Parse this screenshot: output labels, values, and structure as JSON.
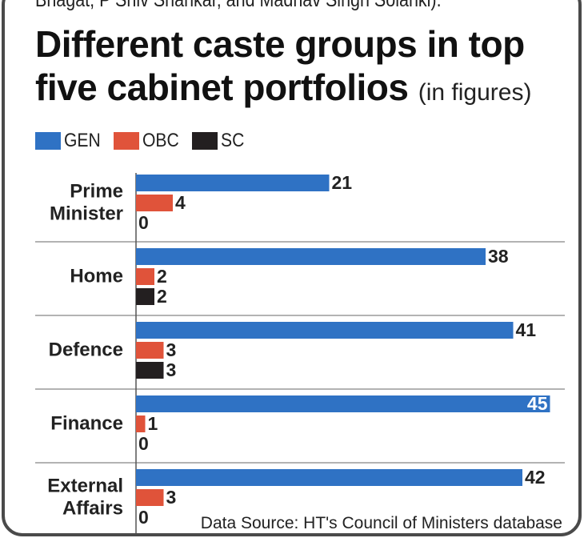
{
  "intro_text": "Bhagat, P Shiv Shankar, and Madhav Singh Solanki).",
  "source_text": "Data Source: HT's Council of Ministers database",
  "chart_data": {
    "type": "bar",
    "orientation": "horizontal",
    "title": "Different caste groups in top five cabinet portfolios",
    "subtitle": "(in figures)",
    "categories": [
      [
        "Prime",
        "Minister"
      ],
      [
        "Home"
      ],
      [
        "Defence"
      ],
      [
        "Finance"
      ],
      [
        "External",
        "Affairs"
      ]
    ],
    "series": [
      {
        "name": "GEN",
        "color": "#2f72c4",
        "values": [
          21,
          38,
          41,
          45,
          42
        ]
      },
      {
        "name": "OBC",
        "color": "#e0533a",
        "values": [
          4,
          2,
          3,
          1,
          3
        ]
      },
      {
        "name": "SC",
        "color": "#231f20",
        "values": [
          0,
          2,
          3,
          0,
          0
        ]
      }
    ],
    "xlim": [
      0,
      45
    ],
    "legend_position": "top-left",
    "grid": false
  }
}
